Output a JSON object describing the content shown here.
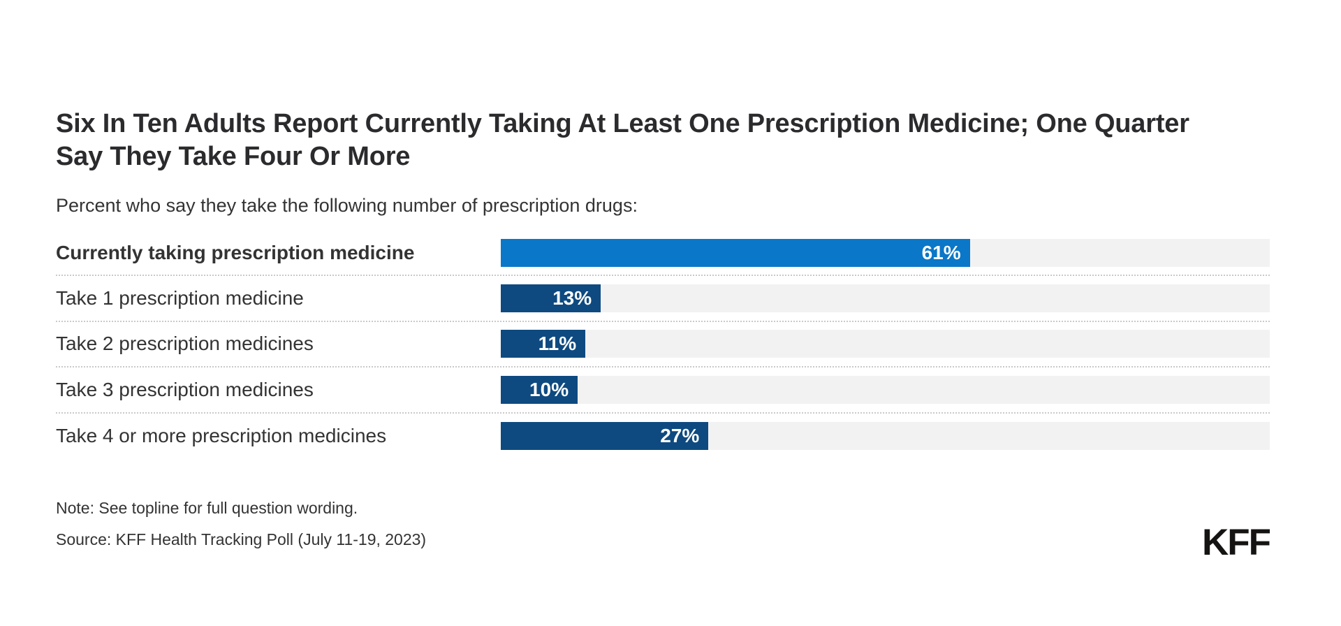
{
  "header": {
    "title": "Six In Ten Adults Report Currently Taking At Least One Prescription Medicine; One Quarter Say They Take Four Or More",
    "subtitle": "Percent who say they take the following number of prescription drugs:"
  },
  "chart_data": {
    "type": "bar",
    "orientation": "horizontal",
    "xlim": [
      0,
      100
    ],
    "unit": "percent",
    "grid": false,
    "value_label_position": "inside-end",
    "track_color": "#f2f2f2",
    "separator_color": "#c9c9c9",
    "categories": [
      "Currently taking prescription medicine",
      "Take 1 prescription medicine",
      "Take 2 prescription medicines",
      "Take 3 prescription medicines",
      "Take 4 or more prescription medicines"
    ],
    "values": [
      61,
      13,
      11,
      10,
      27
    ],
    "rows": [
      {
        "label": "Currently taking prescription medicine",
        "value": 61,
        "display": "61%",
        "color": "#0a77c8",
        "emphasis": true
      },
      {
        "label": "Take 1 prescription medicine",
        "value": 13,
        "display": "13%",
        "color": "#0e4a80",
        "emphasis": false
      },
      {
        "label": "Take 2 prescription medicines",
        "value": 11,
        "display": "11%",
        "color": "#0e4a80",
        "emphasis": false
      },
      {
        "label": "Take 3 prescription medicines",
        "value": 10,
        "display": "10%",
        "color": "#0e4a80",
        "emphasis": false
      },
      {
        "label": "Take 4 or more prescription medicines",
        "value": 27,
        "display": "27%",
        "color": "#0e4a80",
        "emphasis": false
      }
    ]
  },
  "footer": {
    "note": "Note: See topline for full question wording.",
    "source": "Source: KFF Health Tracking Poll (July 11-19, 2023)",
    "logo": "KFF"
  },
  "colors": {
    "highlight_bar": "#0a77c8",
    "bar": "#0e4a80",
    "track": "#f2f2f2",
    "title_text": "#2b2b2e",
    "body_text": "#333333",
    "value_text": "#ffffff",
    "logo_text": "#151413"
  }
}
